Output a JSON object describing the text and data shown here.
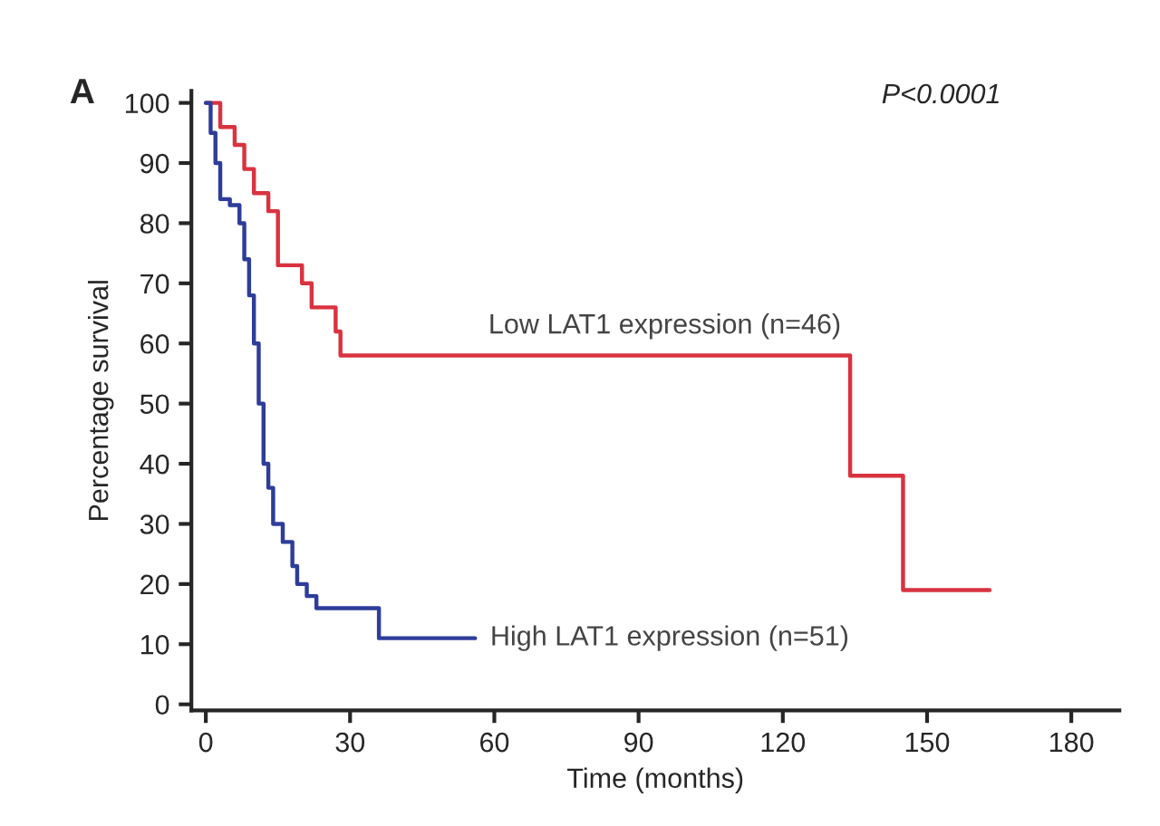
{
  "chart_data": {
    "type": "step",
    "xlabel": "Time (months)",
    "ylabel": "Percentage survival",
    "xlim": [
      -3,
      190
    ],
    "ylim": [
      -1,
      102
    ],
    "xticks": [
      0,
      30,
      60,
      90,
      120,
      150,
      180
    ],
    "yticks": [
      0,
      10,
      20,
      30,
      40,
      50,
      60,
      70,
      80,
      90,
      100
    ],
    "grid": false,
    "legend": false,
    "line_style": "solid",
    "annotations": [
      "A",
      "P<0.0001"
    ],
    "series": [
      {
        "name": "Low LAT1 expression (n=46)",
        "color": "#d9333f",
        "x": [
          0,
          3,
          6,
          8,
          10,
          13,
          15,
          20,
          22,
          27,
          28,
          134,
          145,
          163
        ],
        "values": [
          100,
          96,
          93,
          89,
          85,
          82,
          73,
          70,
          66,
          62,
          58,
          38,
          19,
          19
        ]
      },
      {
        "name": "High LAT1 expression (n=51)",
        "color": "#2e3d9a",
        "x": [
          0,
          1,
          2,
          3,
          5,
          7,
          8,
          9,
          10,
          11,
          12,
          13,
          14,
          16,
          18,
          19,
          21,
          23,
          36,
          56
        ],
        "values": [
          100,
          95,
          90,
          84,
          83,
          80,
          74,
          68,
          60,
          50,
          40,
          36,
          30,
          27,
          23,
          20,
          18,
          16,
          11,
          11
        ]
      }
    ]
  }
}
